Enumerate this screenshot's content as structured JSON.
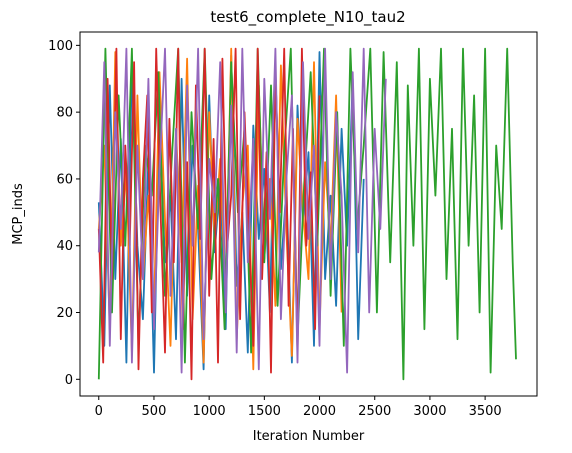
{
  "chart_data": {
    "type": "line",
    "title": "test6_complete_N10_tau2",
    "xlabel": "Iteration Number",
    "ylabel": "MCP_inds",
    "xlim": [
      -170,
      3970
    ],
    "ylim": [
      -5,
      104
    ],
    "xticks": [
      0,
      500,
      1000,
      1500,
      2000,
      2500,
      3000,
      3500
    ],
    "yticks": [
      0,
      20,
      40,
      60,
      80,
      100
    ],
    "grid": false,
    "legend": "none",
    "series": [
      {
        "color": "#1f77b4",
        "x": [
          0,
          50,
          100,
          150,
          200,
          250,
          300,
          350,
          400,
          450,
          500,
          550,
          600,
          650,
          700,
          750,
          800,
          850,
          900,
          950,
          1000,
          1050,
          1100,
          1150,
          1200,
          1250,
          1300,
          1350,
          1400,
          1450,
          1500,
          1550,
          1600,
          1650,
          1700,
          1750,
          1800,
          1850,
          1900,
          1950,
          2000,
          2050,
          2100,
          2150,
          2200,
          2250,
          2300,
          2350,
          2400
        ],
        "y": [
          53,
          10,
          88,
          30,
          72,
          5,
          95,
          40,
          18,
          66,
          2,
          80,
          35,
          55,
          12,
          90,
          25,
          70,
          45,
          3,
          85,
          38,
          60,
          15,
          97,
          28,
          50,
          8,
          76,
          42,
          63,
          20,
          93,
          33,
          57,
          5,
          82,
          47,
          68,
          10,
          98,
          30,
          55,
          22,
          75,
          40,
          90,
          12,
          60
        ]
      },
      {
        "color": "#ff7f0e",
        "x": [
          0,
          50,
          100,
          150,
          200,
          250,
          300,
          350,
          400,
          450,
          500,
          550,
          600,
          650,
          700,
          750,
          800,
          850,
          900,
          950,
          1000,
          1050,
          1100,
          1150,
          1200,
          1250,
          1300,
          1350,
          1400,
          1450,
          1500,
          1550,
          1600,
          1650,
          1700,
          1750,
          1800,
          1850,
          1900,
          1950,
          2000,
          2050,
          2100,
          2150,
          2200
        ],
        "y": [
          45,
          70,
          15,
          98,
          40,
          62,
          8,
          85,
          30,
          55,
          20,
          92,
          48,
          10,
          75,
          35,
          96,
          18,
          58,
          5,
          80,
          42,
          66,
          25,
          99,
          12,
          52,
          70,
          3,
          88,
          36,
          60,
          22,
          94,
          44,
          7,
          78,
          50,
          30,
          95,
          15,
          65,
          40,
          85,
          20
        ]
      },
      {
        "color": "#2ca02c",
        "x": [
          0,
          60,
          120,
          180,
          240,
          300,
          360,
          420,
          480,
          540,
          600,
          660,
          720,
          780,
          840,
          900,
          960,
          1020,
          1080,
          1140,
          1200,
          1260,
          1320,
          1380,
          1440,
          1500,
          1560,
          1620,
          1680,
          1740,
          1800,
          1860,
          1920,
          1980,
          2040,
          2100,
          2160,
          2220,
          2280,
          2340,
          2400,
          2460,
          2520,
          2580,
          2640,
          2700,
          2760,
          2800,
          2850,
          2900,
          2950,
          3000,
          3050,
          3100,
          3150,
          3200,
          3250,
          3300,
          3350,
          3400,
          3450,
          3500,
          3550,
          3600,
          3650,
          3700,
          3750,
          3780
        ],
        "y": [
          0,
          99,
          20,
          85,
          40,
          99,
          10,
          70,
          55,
          92,
          25,
          65,
          99,
          5,
          80,
          45,
          99,
          30,
          60,
          15,
          95,
          50,
          75,
          8,
          99,
          35,
          88,
          22,
          68,
          99,
          12,
          58,
          92,
          40,
          99,
          25,
          80,
          10,
          99,
          45,
          70,
          99,
          20,
          98,
          35,
          95,
          0,
          88,
          40,
          99,
          15,
          90,
          55,
          99,
          30,
          75,
          12,
          99,
          40,
          85,
          20,
          99,
          2,
          70,
          45,
          99,
          35,
          6
        ]
      },
      {
        "color": "#d62728",
        "x": [
          0,
          40,
          80,
          120,
          160,
          200,
          240,
          280,
          320,
          360,
          400,
          440,
          480,
          520,
          560,
          600,
          640,
          680,
          720,
          760,
          800,
          840,
          880,
          920,
          960,
          1000,
          1040,
          1080,
          1120,
          1160,
          1200,
          1240,
          1280,
          1320,
          1360,
          1400,
          1440,
          1480,
          1520,
          1560,
          1600,
          1640,
          1680,
          1720,
          1760,
          1800,
          1840,
          1880,
          1920,
          1960,
          2000
        ],
        "y": [
          45,
          5,
          90,
          30,
          99,
          12,
          70,
          40,
          95,
          3,
          60,
          85,
          20,
          99,
          50,
          8,
          78,
          35,
          99,
          15,
          65,
          0,
          88,
          42,
          99,
          25,
          72,
          5,
          96,
          38,
          55,
          99,
          18,
          80,
          45,
          10,
          99,
          30,
          68,
          2,
          92,
          50,
          99,
          22,
          75,
          8,
          99,
          40,
          62,
          15,
          85
        ]
      },
      {
        "color": "#9467bd",
        "x": [
          0,
          50,
          100,
          150,
          200,
          250,
          300,
          350,
          400,
          450,
          500,
          550,
          600,
          650,
          700,
          750,
          800,
          850,
          900,
          950,
          1000,
          1050,
          1100,
          1150,
          1200,
          1250,
          1300,
          1350,
          1400,
          1450,
          1500,
          1550,
          1600,
          1650,
          1700,
          1750,
          1800,
          1850,
          1900,
          1950,
          2000,
          2050,
          2100,
          2150,
          2200,
          2250,
          2300,
          2350,
          2400,
          2450,
          2500,
          2550,
          2600
        ],
        "y": [
          38,
          95,
          10,
          80,
          45,
          99,
          5,
          70,
          30,
          90,
          15,
          62,
          99,
          25,
          75,
          2,
          88,
          40,
          99,
          12,
          66,
          50,
          95,
          20,
          82,
          8,
          99,
          35,
          72,
          3,
          90,
          48,
          99,
          18,
          60,
          85,
          5,
          95,
          42,
          70,
          10,
          99,
          30,
          80,
          55,
          2,
          92,
          38,
          99,
          20,
          75,
          45,
          90
        ]
      }
    ]
  }
}
